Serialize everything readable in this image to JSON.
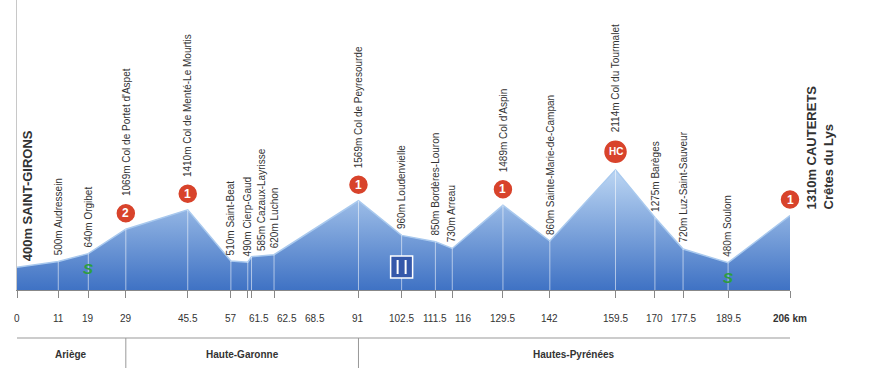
{
  "chart_data": {
    "type": "area",
    "x": [
      0,
      11,
      19,
      29,
      45.5,
      57,
      61.5,
      62.5,
      68.5,
      91,
      102.5,
      111.5,
      116,
      129.5,
      142,
      159.5,
      170,
      177.5,
      189.5,
      206
    ],
    "values": [
      400,
      500,
      640,
      1069,
      1410,
      510,
      490,
      585,
      620,
      1569,
      960,
      850,
      730,
      1489,
      860,
      2114,
      1275,
      720,
      480,
      1310
    ],
    "color": "#3f72c4",
    "xlim": [
      0,
      206
    ],
    "xticks": [
      0,
      11,
      19,
      29,
      45.5,
      57,
      61.5,
      62.5,
      68.5,
      91,
      102.5,
      111.5,
      116,
      129.5,
      142,
      159.5,
      170,
      177.5,
      189.5,
      {
        "value": 206,
        "label": "206 km"
      }
    ],
    "ylim": [
      0,
      5100
    ],
    "tick_labels": "x",
    "grid": false,
    "start_label": {
      "x": 0,
      "text": "400m SAINT-GIRONS"
    },
    "finish_label": {
      "x": 206,
      "lines": [
        "1310m CAUTERETS",
        "Crêtes du Lys"
      ]
    },
    "annotations": [
      {
        "x": 11,
        "text": "500m Audressein"
      },
      {
        "x": 19,
        "text": "640m Orgibet"
      },
      {
        "x": 29,
        "text": "1069m Col de Portet d'Aspet"
      },
      {
        "x": 45.5,
        "text": "1410m Col de Menté-Le Mourtis"
      },
      {
        "x": 57,
        "text": "510m Saint-Beat"
      },
      {
        "x": 61.5,
        "text": "490m Cierp-Gaud"
      },
      {
        "x": 62.5,
        "text": "585m Cazaux-Layrisse"
      },
      {
        "x": 68.5,
        "text": "620m Luchon"
      },
      {
        "x": 91,
        "text": "1569m Col de Peyresourde"
      },
      {
        "x": 102.5,
        "text": "960m Loudenvielle"
      },
      {
        "x": 111.5,
        "text": "850m Bordères-Louron"
      },
      {
        "x": 116,
        "text": "730m Arreau"
      },
      {
        "x": 129.5,
        "text": "1489m Col d'Aspin"
      },
      {
        "x": 142,
        "text": "860m Sainte-Marie-de-Campan"
      },
      {
        "x": 159.5,
        "text": "2114m Col du Tourmalet"
      },
      {
        "x": 170,
        "text": "1275m Barèges"
      },
      {
        "x": 177.5,
        "text": "720m Luz-Saint-Sauveur"
      },
      {
        "x": 189.5,
        "text": "480m Soulom"
      }
    ],
    "climbs": [
      {
        "x": 29,
        "category": "2"
      },
      {
        "x": 45.5,
        "category": "1"
      },
      {
        "x": 91,
        "category": "1"
      },
      {
        "x": 129.5,
        "category": "1"
      },
      {
        "x": 159.5,
        "category": "HC"
      },
      {
        "x": 206,
        "category": "1"
      }
    ],
    "sprints": [
      {
        "x": 19,
        "label": "S"
      },
      {
        "x": 189.5,
        "label": "S"
      }
    ],
    "feed_zone": {
      "x": 102.5
    },
    "regions": [
      {
        "name": "Ariège",
        "from": 0,
        "to": 29
      },
      {
        "name": "Haute-Garonne",
        "from": 29,
        "to": 91
      },
      {
        "name": "Hautes-Pyrénées",
        "from": 91,
        "to": 206
      }
    ]
  }
}
